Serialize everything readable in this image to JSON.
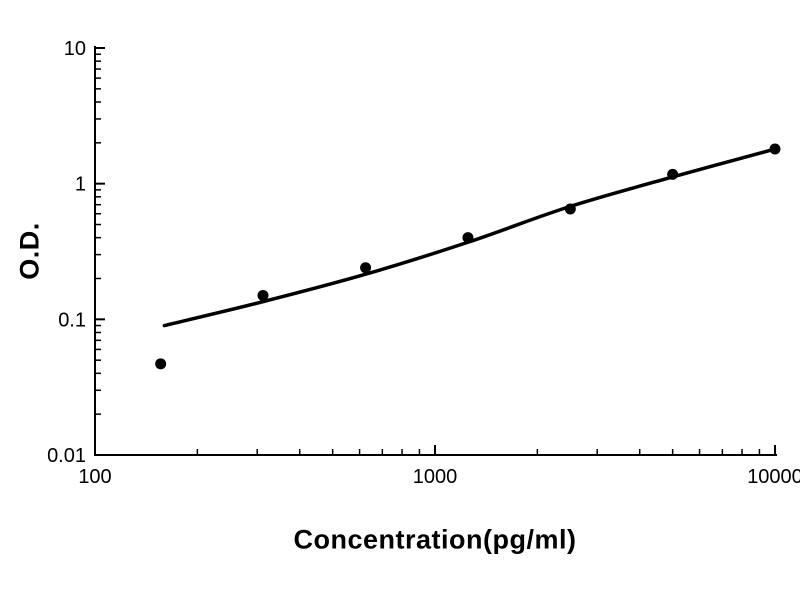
{
  "chart_data": {
    "type": "scatter",
    "title": "",
    "xlabel": "Concentration(pg/ml)",
    "ylabel": "O.D.",
    "xscale": "log",
    "yscale": "log",
    "xlim": [
      100,
      10000
    ],
    "ylim": [
      0.01,
      10
    ],
    "x_ticks": [
      100,
      1000,
      10000
    ],
    "x_tick_labels": [
      "100",
      "1000",
      "10000"
    ],
    "y_ticks": [
      0.01,
      0.1,
      1,
      10
    ],
    "y_tick_labels": [
      "0.01",
      "0.1",
      "1",
      "10"
    ],
    "grid": false,
    "legend": false,
    "axis_color": "#000000",
    "series": [
      {
        "name": "fitted-curve",
        "type": "line",
        "color": "#000000",
        "x": [
          160,
          312,
          625,
          1250,
          2500,
          5000,
          10000
        ],
        "y": [
          0.09,
          0.135,
          0.215,
          0.37,
          0.68,
          1.12,
          1.8
        ]
      },
      {
        "name": "standard-points",
        "type": "scatter",
        "marker": "filled-circle",
        "color": "#000000",
        "x": [
          156,
          312,
          625,
          1250,
          2500,
          5000,
          10000
        ],
        "y": [
          0.047,
          0.15,
          0.24,
          0.4,
          0.65,
          1.17,
          1.8
        ]
      }
    ]
  }
}
